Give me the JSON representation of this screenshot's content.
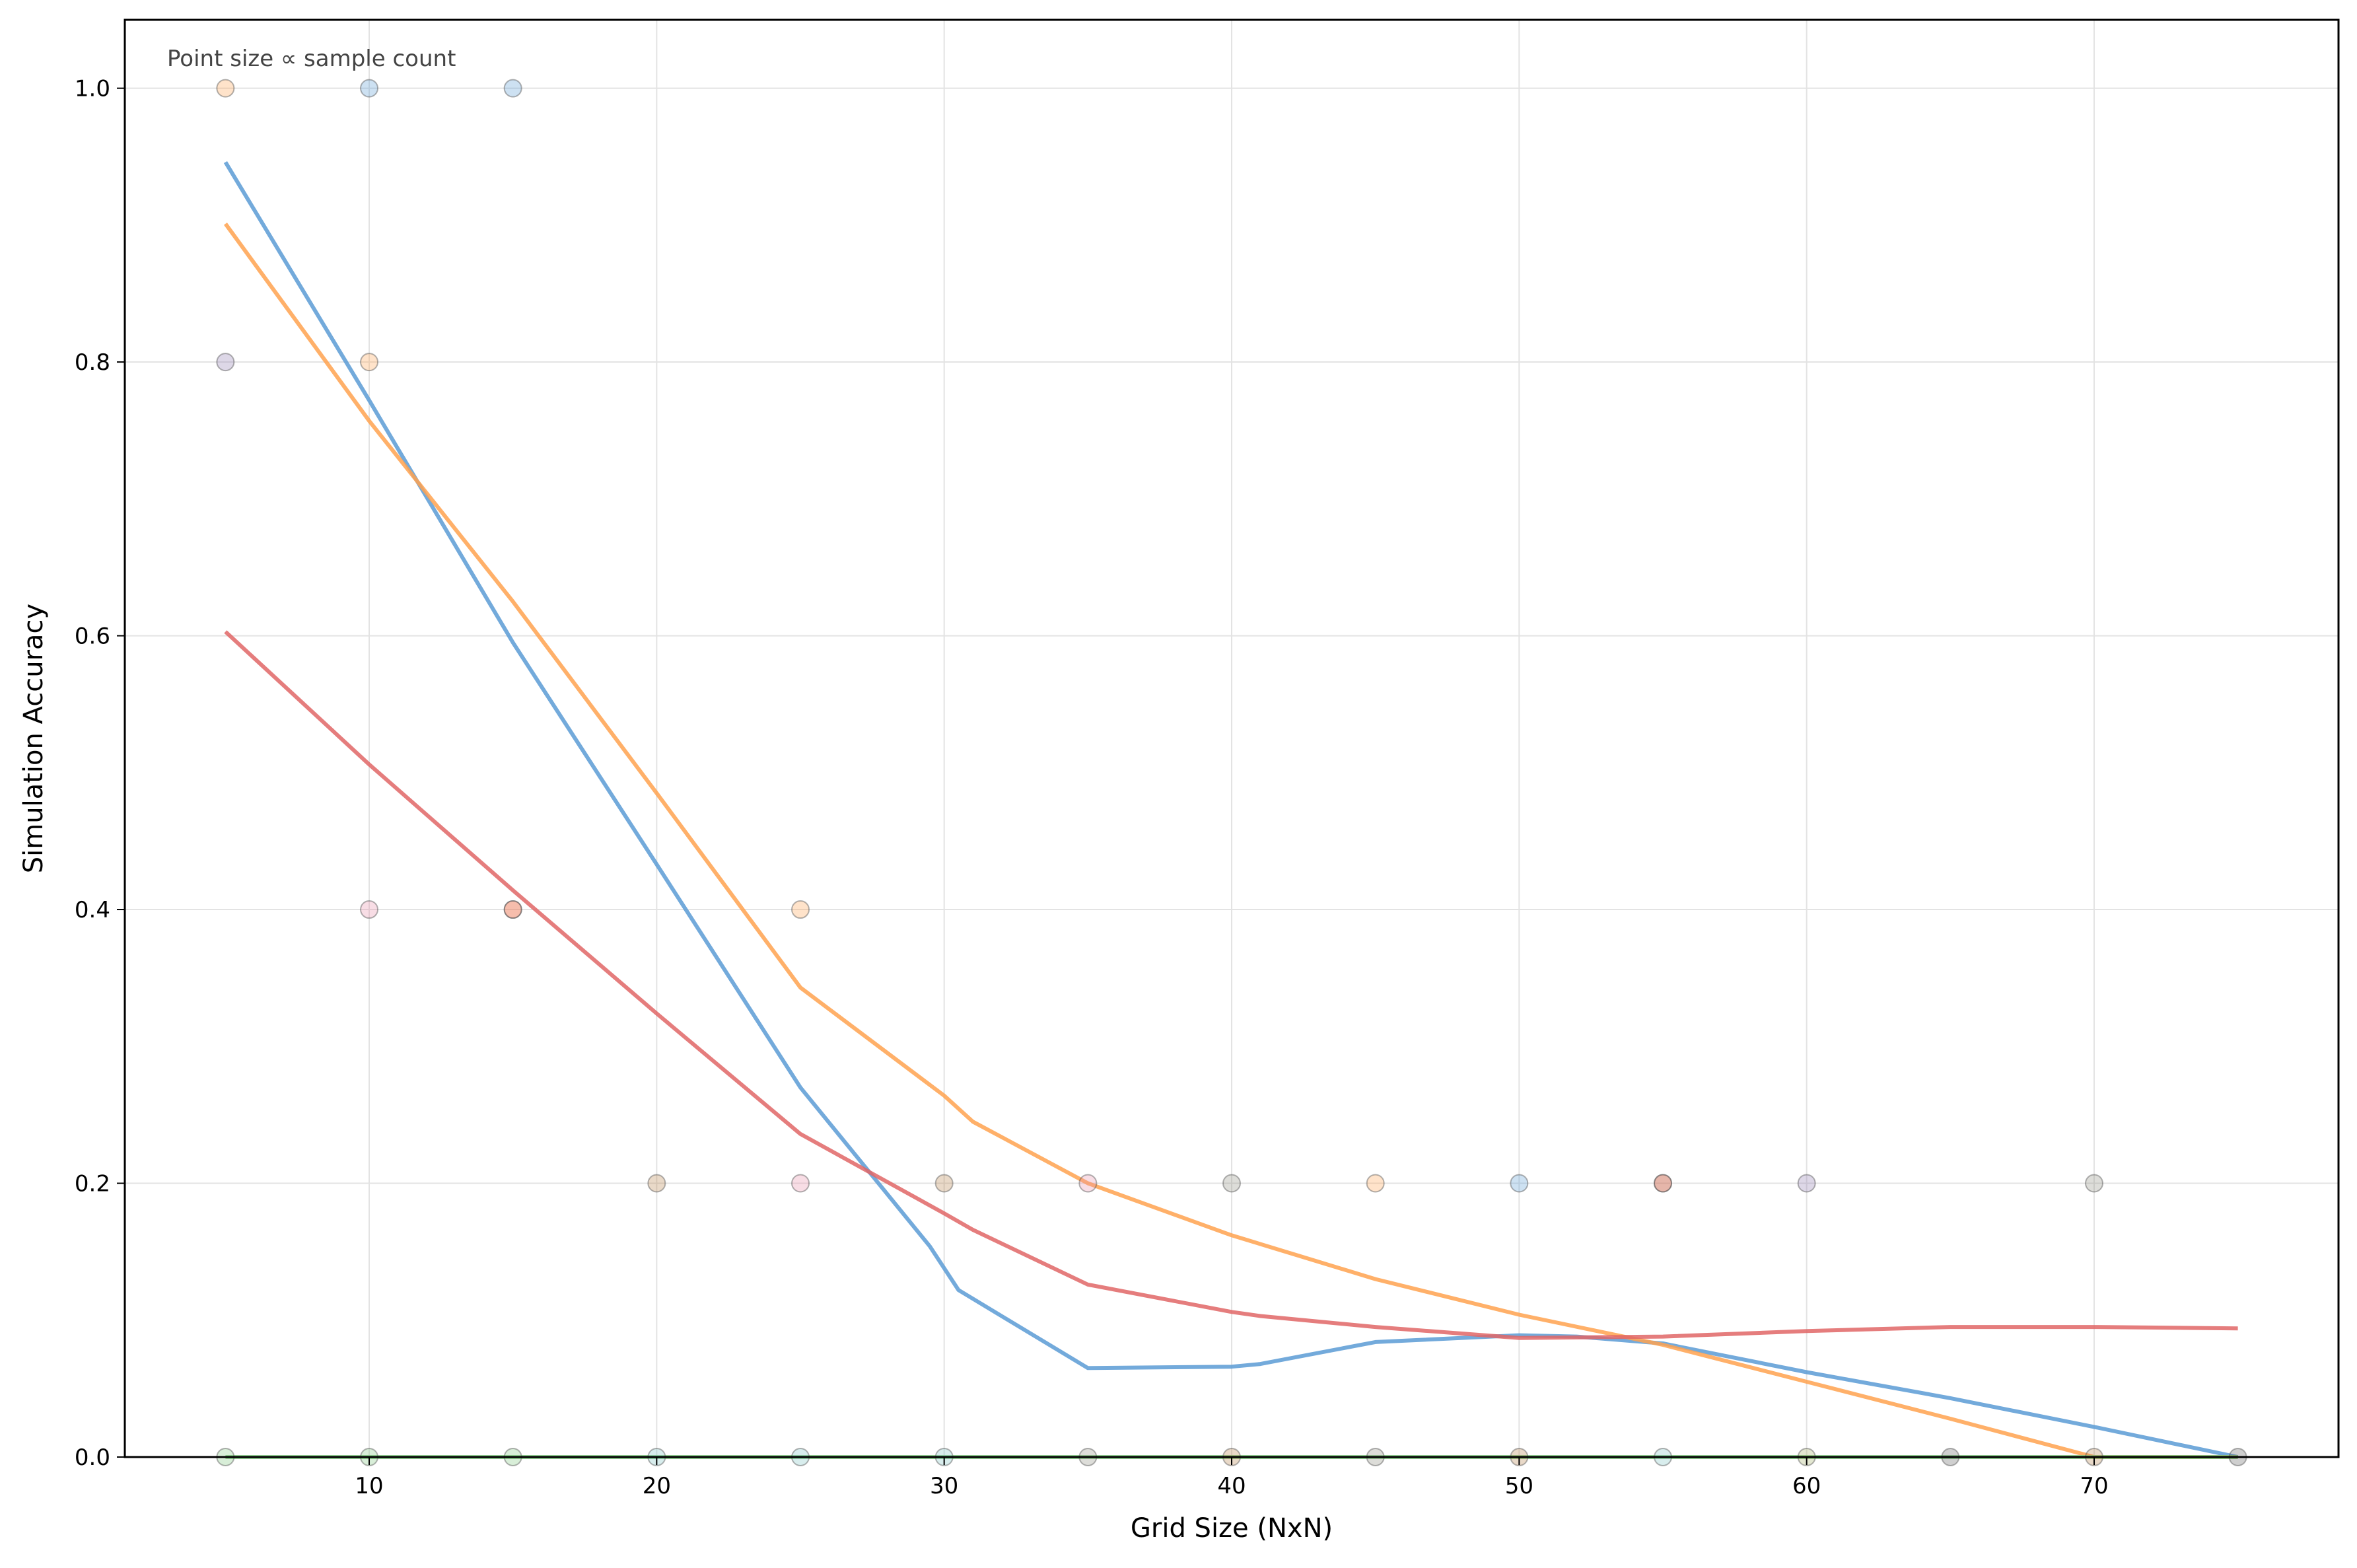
{
  "chart_data": {
    "type": "scatter",
    "title": "",
    "xlabel": "Grid Size (NxN)",
    "ylabel": "Simulation Accuracy",
    "xlim": [
      1.5,
      78.5
    ],
    "ylim": [
      0,
      1.05
    ],
    "xticks": [
      10,
      20,
      30,
      40,
      50,
      60,
      70
    ],
    "yticks": [
      0.0,
      0.2,
      0.4,
      0.6,
      0.8,
      1.0
    ],
    "xtick_labels": [
      "10",
      "20",
      "30",
      "40",
      "50",
      "60",
      "70"
    ],
    "ytick_labels": [
      "0.0",
      "0.2",
      "0.4",
      "0.6",
      "0.8",
      "1.0"
    ],
    "grid": true,
    "legend": null,
    "annotation": "Point size ∝ sample count",
    "colors": {
      "blue": "#5b9bd5",
      "orange": "#ffa24f",
      "red": "#e06666",
      "green": "#7ec87e",
      "purple": "#8e7bb0",
      "pink": "#e88fa8",
      "gray": "#8f8f80",
      "brown": "#b7824a",
      "teal": "#7fc2c2",
      "olive": "#a3b067",
      "darkgray": "#5f5f5f",
      "frame": "#000000",
      "grid": "#e3e3e3",
      "annotation": "#444444"
    },
    "scatter_points": [
      {
        "x": 5,
        "y": 1.0,
        "color": "orange"
      },
      {
        "x": 10,
        "y": 1.0,
        "color": "blue"
      },
      {
        "x": 15,
        "y": 1.0,
        "color": "blue"
      },
      {
        "x": 5,
        "y": 0.8,
        "color": "purple"
      },
      {
        "x": 10,
        "y": 0.8,
        "color": "orange"
      },
      {
        "x": 10,
        "y": 0.4,
        "color": "pink"
      },
      {
        "x": 15,
        "y": 0.4,
        "color": "orange"
      },
      {
        "x": 15,
        "y": 0.4,
        "color": "red"
      },
      {
        "x": 25,
        "y": 0.4,
        "color": "orange"
      },
      {
        "x": 20,
        "y": 0.2,
        "color": "brown"
      },
      {
        "x": 25,
        "y": 0.2,
        "color": "pink"
      },
      {
        "x": 30,
        "y": 0.2,
        "color": "brown"
      },
      {
        "x": 35,
        "y": 0.2,
        "color": "pink"
      },
      {
        "x": 40,
        "y": 0.2,
        "color": "gray"
      },
      {
        "x": 45,
        "y": 0.2,
        "color": "orange"
      },
      {
        "x": 50,
        "y": 0.2,
        "color": "blue"
      },
      {
        "x": 55,
        "y": 0.2,
        "color": "brown"
      },
      {
        "x": 55,
        "y": 0.2,
        "color": "red"
      },
      {
        "x": 60,
        "y": 0.2,
        "color": "purple"
      },
      {
        "x": 70,
        "y": 0.2,
        "color": "gray"
      },
      {
        "x": 5,
        "y": 0.0,
        "color": "green"
      },
      {
        "x": 10,
        "y": 0.0,
        "color": "green"
      },
      {
        "x": 15,
        "y": 0.0,
        "color": "green"
      },
      {
        "x": 20,
        "y": 0.0,
        "color": "teal"
      },
      {
        "x": 25,
        "y": 0.0,
        "color": "teal"
      },
      {
        "x": 30,
        "y": 0.0,
        "color": "teal"
      },
      {
        "x": 35,
        "y": 0.0,
        "color": "gray"
      },
      {
        "x": 40,
        "y": 0.0,
        "color": "brown"
      },
      {
        "x": 45,
        "y": 0.0,
        "color": "gray"
      },
      {
        "x": 50,
        "y": 0.0,
        "color": "brown"
      },
      {
        "x": 55,
        "y": 0.0,
        "color": "teal"
      },
      {
        "x": 60,
        "y": 0.0,
        "color": "olive"
      },
      {
        "x": 65,
        "y": 0.0,
        "color": "darkgray"
      },
      {
        "x": 70,
        "y": 0.0,
        "color": "brown"
      },
      {
        "x": 75,
        "y": 0.0,
        "color": "darkgray"
      }
    ],
    "series": [
      {
        "color": "blue",
        "x": [
          5,
          10,
          15,
          20,
          25,
          29.5,
          30.5,
          35,
          40,
          41,
          45,
          50,
          52,
          55,
          60,
          65,
          70,
          75
        ],
        "y": [
          0.946,
          0.772,
          0.595,
          0.433,
          0.27,
          0.154,
          0.122,
          0.065,
          0.066,
          0.068,
          0.084,
          0.089,
          0.088,
          0.083,
          0.062,
          0.043,
          0.022,
          0.0
        ]
      },
      {
        "color": "orange",
        "x": [
          5,
          10,
          15,
          20,
          25,
          30,
          31,
          35,
          40,
          45,
          50,
          55,
          60,
          65,
          70,
          75
        ],
        "y": [
          0.901,
          0.757,
          0.625,
          0.485,
          0.343,
          0.264,
          0.245,
          0.2,
          0.162,
          0.13,
          0.104,
          0.082,
          0.055,
          0.028,
          0.0,
          0.0
        ]
      },
      {
        "color": "red",
        "x": [
          5,
          10,
          15,
          20,
          25,
          30,
          31,
          35,
          40,
          41,
          45,
          50,
          55,
          60,
          65,
          70,
          75
        ],
        "y": [
          0.603,
          0.506,
          0.414,
          0.324,
          0.236,
          0.178,
          0.166,
          0.126,
          0.106,
          0.103,
          0.095,
          0.087,
          0.088,
          0.092,
          0.095,
          0.095,
          0.094
        ]
      },
      {
        "color": "green",
        "x": [
          5,
          75
        ],
        "y": [
          0.0,
          0.0
        ]
      }
    ]
  }
}
